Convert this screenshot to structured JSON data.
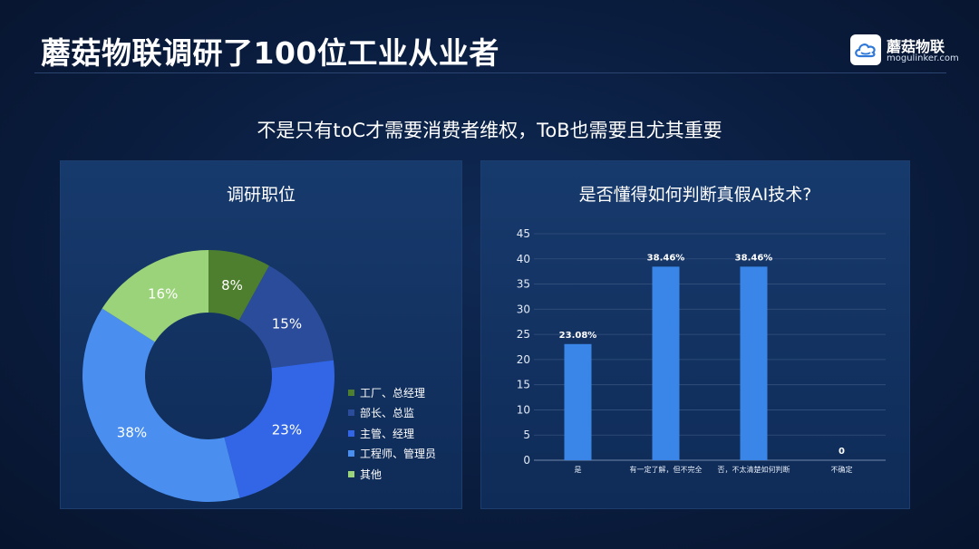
{
  "header": {
    "title": "蘑菇物联调研了100位工业从业者",
    "logo_name": "蘑菇物联",
    "logo_url": "mogulinker.com"
  },
  "subtitle": "不是只有toC才需要消费者维权，ToB也需要且尤其重要",
  "colors": {
    "green_dark": "#4e7f2e",
    "navy_blue": "#2b4c9b",
    "royal_blue": "#3366e6",
    "sky_blue": "#4a8ff0",
    "light_green": "#9bd37a",
    "bar_blue": "#3a86e8"
  },
  "chart_data": [
    {
      "type": "pie",
      "title": "调研职位",
      "hole": true,
      "legend_position": "right",
      "slices": [
        {
          "label": "工厂、总经理",
          "value": 8,
          "display": "8%",
          "color": "#4e7f2e"
        },
        {
          "label": "部长、总监",
          "value": 15,
          "display": "15%",
          "color": "#2b4c9b"
        },
        {
          "label": "主管、经理",
          "value": 23,
          "display": "23%",
          "color": "#3366e6"
        },
        {
          "label": "工程师、管理员",
          "value": 38,
          "display": "38%",
          "color": "#4a8ff0"
        },
        {
          "label": "其他",
          "value": 16,
          "display": "16%",
          "color": "#9bd37a"
        }
      ]
    },
    {
      "type": "bar",
      "title": "是否懂得如何判断真假AI技术?",
      "categories": [
        "是",
        "有一定了解，但不完全",
        "否，不太清楚如何判断",
        "不确定"
      ],
      "values": [
        23.08,
        38.46,
        38.46,
        0
      ],
      "value_labels": [
        "23.08%",
        "38.46%",
        "38.46%",
        "0"
      ],
      "ylim": [
        0,
        45
      ],
      "yticks": [
        0,
        5,
        10,
        15,
        20,
        25,
        30,
        35,
        40,
        45
      ],
      "grid": true
    }
  ]
}
